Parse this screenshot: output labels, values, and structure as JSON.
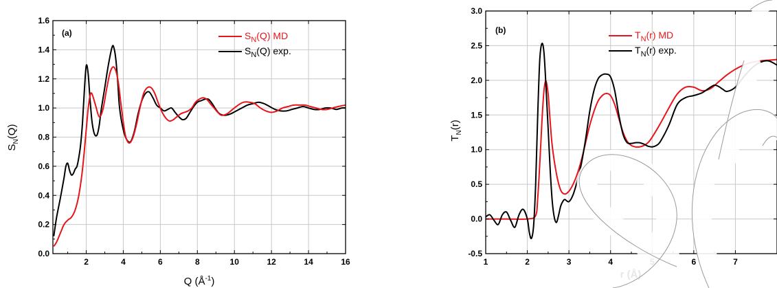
{
  "chart_data": [
    {
      "type": "line",
      "panel_label": "(a)",
      "xlabel": "Q (Å",
      "xlabel_sup": "-1",
      "xlabel_close": ")",
      "ylabel": "S",
      "ylabel_sub": "N",
      "ylabel_tail": "(Q)",
      "xlim": [
        0.2,
        16
      ],
      "ylim": [
        0,
        1.6
      ],
      "xticks": [
        2,
        4,
        6,
        8,
        10,
        12,
        14,
        16
      ],
      "yticks": [
        0.0,
        0.2,
        0.4,
        0.6,
        0.8,
        1.0,
        1.2,
        1.4,
        1.6
      ],
      "xtick_labels": [
        "2",
        "4",
        "6",
        "8",
        "10",
        "12",
        "14",
        "16"
      ],
      "ytick_labels": [
        "0.0",
        "0.2",
        "0.4",
        "0.6",
        "0.8",
        "1.0",
        "1.2",
        "1.4",
        "1.6"
      ],
      "grid": true,
      "legend_position": "top-right",
      "series": [
        {
          "name": "S",
          "name_sub": "N",
          "name_tail": "(Q) MD",
          "color": "#e8141b",
          "x": [
            0.25,
            0.4,
            0.6,
            0.8,
            1.0,
            1.2,
            1.4,
            1.6,
            1.8,
            2.0,
            2.1,
            2.2,
            2.3,
            2.5,
            2.7,
            2.9,
            3.1,
            3.3,
            3.5,
            3.7,
            3.9,
            4.1,
            4.3,
            4.5,
            4.7,
            4.9,
            5.1,
            5.3,
            5.5,
            5.7,
            5.9,
            6.1,
            6.3,
            6.5,
            6.7,
            6.9,
            7.1,
            7.3,
            7.5,
            7.7,
            7.9,
            8.1,
            8.3,
            8.5,
            8.7,
            8.9,
            9.1,
            9.3,
            9.6,
            9.9,
            10.2,
            10.5,
            10.8,
            11.1,
            11.4,
            11.7,
            12.0,
            12.3,
            12.6,
            12.9,
            13.2,
            13.5,
            13.8,
            14.1,
            14.4,
            14.7,
            15.0,
            15.3,
            15.6,
            16.0
          ],
          "y": [
            0.05,
            0.08,
            0.14,
            0.2,
            0.23,
            0.25,
            0.3,
            0.4,
            0.58,
            0.85,
            0.99,
            1.08,
            1.1,
            1.02,
            0.94,
            0.99,
            1.13,
            1.25,
            1.28,
            1.2,
            1.0,
            0.82,
            0.76,
            0.79,
            0.88,
            1.0,
            1.1,
            1.14,
            1.14,
            1.1,
            1.03,
            0.97,
            0.93,
            0.91,
            0.92,
            0.94,
            0.96,
            0.97,
            0.98,
            1.0,
            1.04,
            1.06,
            1.07,
            1.06,
            1.03,
            1.0,
            0.97,
            0.95,
            0.96,
            0.99,
            1.02,
            1.04,
            1.04,
            1.03,
            1.0,
            0.98,
            0.97,
            0.98,
            1.0,
            1.01,
            1.02,
            1.02,
            1.02,
            1.01,
            1.0,
            0.99,
            0.99,
            1.0,
            1.01,
            1.02
          ]
        },
        {
          "name": "S",
          "name_sub": "N",
          "name_tail": "(Q) exp.",
          "color": "#000000",
          "x": [
            0.25,
            0.4,
            0.6,
            0.8,
            0.9,
            1.0,
            1.1,
            1.2,
            1.3,
            1.4,
            1.5,
            1.6,
            1.7,
            1.8,
            1.9,
            2.0,
            2.1,
            2.2,
            2.3,
            2.4,
            2.5,
            2.6,
            2.7,
            2.8,
            3.0,
            3.2,
            3.4,
            3.5,
            3.6,
            3.7,
            3.8,
            4.0,
            4.2,
            4.4,
            4.6,
            4.8,
            5.0,
            5.2,
            5.4,
            5.6,
            5.8,
            6.0,
            6.2,
            6.4,
            6.6,
            6.8,
            7.0,
            7.2,
            7.4,
            7.6,
            7.8,
            8.0,
            8.2,
            8.4,
            8.6,
            8.8,
            9.0,
            9.2,
            9.5,
            9.8,
            10.1,
            10.4,
            10.7,
            11.0,
            11.3,
            11.6,
            11.9,
            12.2,
            12.5,
            12.8,
            13.1,
            13.4,
            13.7,
            14.0,
            14.3,
            14.6,
            14.9,
            15.2,
            15.5,
            15.8,
            16.0
          ],
          "y": [
            0.12,
            0.25,
            0.38,
            0.52,
            0.6,
            0.62,
            0.57,
            0.54,
            0.55,
            0.58,
            0.6,
            0.66,
            0.75,
            0.9,
            1.12,
            1.29,
            1.24,
            1.07,
            0.92,
            0.84,
            0.81,
            0.82,
            0.88,
            0.98,
            1.14,
            1.3,
            1.42,
            1.41,
            1.33,
            1.18,
            1.0,
            0.85,
            0.78,
            0.77,
            0.84,
            0.96,
            1.05,
            1.1,
            1.11,
            1.07,
            1.02,
            1.0,
            0.98,
            0.99,
            1.0,
            0.97,
            0.94,
            0.92,
            0.93,
            0.97,
            1.01,
            1.04,
            1.05,
            1.06,
            1.06,
            1.03,
            0.99,
            0.96,
            0.95,
            0.96,
            0.98,
            1.0,
            1.02,
            1.03,
            1.04,
            1.03,
            1.01,
            0.99,
            0.98,
            0.98,
            0.99,
            1.0,
            1.01,
            1.0,
            0.99,
            0.99,
            1.0,
            1.0,
            0.99,
            1.0,
            1.0
          ]
        }
      ]
    },
    {
      "type": "line",
      "panel_label": "(b)",
      "xlabel": "r (Å)",
      "ylabel": "T",
      "ylabel_sub": "N",
      "ylabel_tail": "(r)",
      "xlim": [
        1,
        8
      ],
      "ylim": [
        -0.5,
        3.0
      ],
      "xticks": [
        1,
        2,
        3,
        4,
        5,
        6,
        7
      ],
      "yticks": [
        -0.5,
        0.0,
        0.5,
        1.0,
        1.5,
        2.0,
        2.5,
        3.0
      ],
      "xtick_labels": [
        "1",
        "2",
        "3",
        "4",
        "5",
        "6",
        "7"
      ],
      "ytick_labels": [
        "-0.5",
        "0.0",
        "0.5",
        "1.0",
        "1.5",
        "2.0",
        "2.5",
        "3.0"
      ],
      "grid": true,
      "legend_position": "top-right",
      "series": [
        {
          "name": "T",
          "name_sub": "N",
          "name_tail": "(r)  MD",
          "color": "#e8141b",
          "x": [
            1.0,
            1.5,
            2.0,
            2.2,
            2.25,
            2.3,
            2.35,
            2.4,
            2.45,
            2.5,
            2.55,
            2.6,
            2.7,
            2.8,
            2.9,
            3.0,
            3.1,
            3.2,
            3.3,
            3.4,
            3.5,
            3.6,
            3.7,
            3.8,
            3.9,
            4.0,
            4.1,
            4.2,
            4.3,
            4.4,
            4.5,
            4.6,
            4.7,
            4.8,
            4.9,
            5.0,
            5.2,
            5.4,
            5.6,
            5.8,
            6.0,
            6.2,
            6.4,
            6.6,
            6.8,
            7.0,
            7.2,
            7.4,
            7.6,
            7.8,
            8.0
          ],
          "y": [
            0.0,
            0.0,
            0.0,
            0.05,
            0.3,
            0.8,
            1.4,
            1.85,
            1.99,
            1.8,
            1.4,
            1.05,
            0.65,
            0.42,
            0.36,
            0.4,
            0.5,
            0.65,
            0.85,
            1.1,
            1.35,
            1.55,
            1.7,
            1.78,
            1.81,
            1.78,
            1.65,
            1.45,
            1.25,
            1.12,
            1.06,
            1.04,
            1.04,
            1.06,
            1.1,
            1.18,
            1.38,
            1.6,
            1.8,
            1.9,
            1.9,
            1.85,
            1.88,
            1.98,
            2.08,
            2.16,
            2.22,
            2.26,
            2.28,
            2.29,
            2.3
          ]
        },
        {
          "name": "T",
          "name_sub": "N",
          "name_tail": "(r) exp.",
          "color": "#000000",
          "x": [
            1.0,
            1.1,
            1.2,
            1.3,
            1.4,
            1.5,
            1.6,
            1.7,
            1.8,
            1.9,
            2.0,
            2.05,
            2.1,
            2.15,
            2.2,
            2.25,
            2.3,
            2.35,
            2.4,
            2.45,
            2.5,
            2.55,
            2.6,
            2.65,
            2.7,
            2.75,
            2.8,
            2.85,
            2.9,
            3.0,
            3.1,
            3.2,
            3.3,
            3.4,
            3.5,
            3.6,
            3.7,
            3.8,
            3.9,
            4.0,
            4.1,
            4.2,
            4.3,
            4.4,
            4.5,
            4.6,
            4.7,
            4.8,
            4.9,
            5.0,
            5.1,
            5.2,
            5.4,
            5.6,
            5.8,
            6.0,
            6.2,
            6.4,
            6.5,
            6.6,
            6.7,
            6.8,
            7.0,
            7.2,
            7.4,
            7.6,
            7.8,
            8.0
          ],
          "y": [
            0.03,
            0.06,
            -0.02,
            -0.08,
            0.06,
            0.1,
            -0.02,
            -0.12,
            0.06,
            0.14,
            0.0,
            -0.2,
            -0.28,
            -0.1,
            0.5,
            1.5,
            2.3,
            2.53,
            2.4,
            1.9,
            1.3,
            0.7,
            0.25,
            0.02,
            -0.05,
            0.05,
            0.18,
            0.25,
            0.28,
            0.25,
            0.35,
            0.55,
            0.8,
            1.15,
            1.55,
            1.85,
            2.02,
            2.08,
            2.09,
            2.05,
            1.85,
            1.5,
            1.22,
            1.1,
            1.09,
            1.1,
            1.1,
            1.08,
            1.05,
            1.04,
            1.06,
            1.12,
            1.35,
            1.65,
            1.75,
            1.78,
            1.82,
            1.9,
            1.93,
            1.91,
            1.87,
            1.84,
            1.9,
            2.05,
            2.18,
            2.26,
            2.28,
            2.22
          ]
        }
      ]
    }
  ]
}
